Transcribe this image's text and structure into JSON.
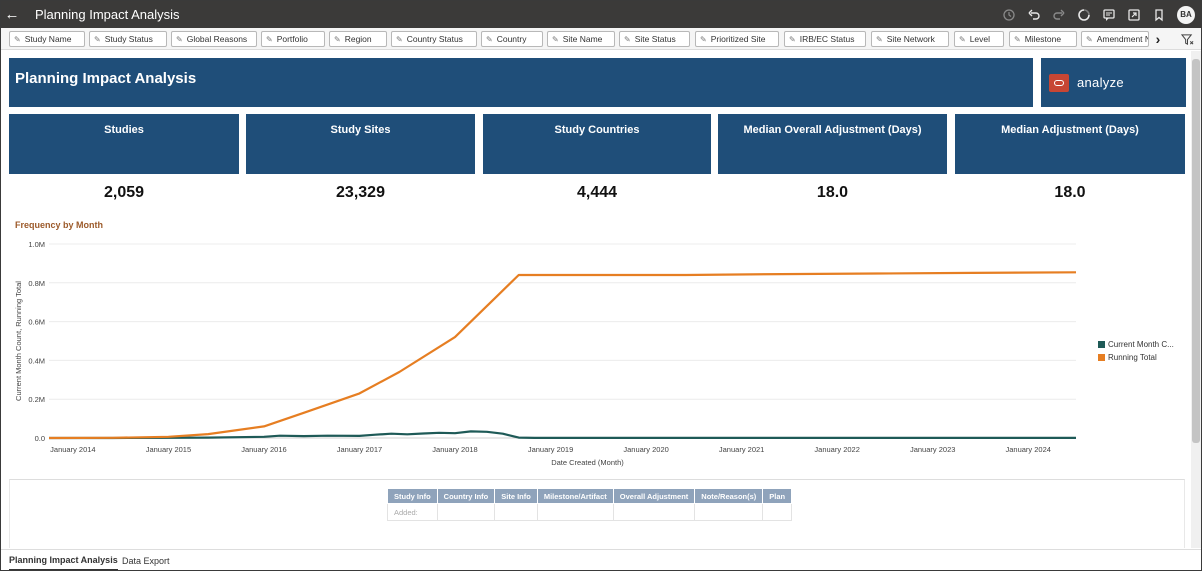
{
  "app": {
    "title": "Planning Impact Analysis",
    "user_initials": "BA"
  },
  "toolbar_icons": [
    "undo-history-icon",
    "undo-icon",
    "redo-icon",
    "refresh-icon",
    "comment-icon",
    "present-icon",
    "bookmark-icon"
  ],
  "filters": [
    "Study Name",
    "Study Status",
    "Global Reasons",
    "Portfolio",
    "Region",
    "Country Status",
    "Country",
    "Site Name",
    "Site Status",
    "Prioritized Site",
    "IRB/EC Status",
    "Site Network",
    "Level",
    "Milestone",
    "Amendment N"
  ],
  "banner": {
    "title": "Planning Impact Analysis",
    "logo_text": "analyze"
  },
  "kpis": [
    {
      "label": "Studies",
      "value": "2,059"
    },
    {
      "label": "Study Sites",
      "value": "23,329"
    },
    {
      "label": "Study Countries",
      "value": "4,444"
    },
    {
      "label": "Median Overall Adjustment (Days)",
      "value": "18.0"
    },
    {
      "label": "Median Adjustment (Days)",
      "value": "18.0"
    }
  ],
  "chart_title": "Frequency by Month",
  "chart_data": {
    "type": "line",
    "xlabel": "Date Created (Month)",
    "ylabel": "Current Month Count, Running Total",
    "ylim": [
      0,
      1000000
    ],
    "xlim": [
      "2013-10",
      "2024-07"
    ],
    "y_ticks": [
      "0.0",
      "0.2M",
      "0.4M",
      "0.6M",
      "0.8M",
      "1.0M"
    ],
    "y_tick_values": [
      0,
      200000,
      400000,
      600000,
      800000,
      1000000
    ],
    "x_ticks": [
      "January 2014",
      "January 2015",
      "January 2016",
      "January 2017",
      "January 2018",
      "January 2019",
      "January 2020",
      "January 2021",
      "January 2022",
      "January 2023",
      "January 2024"
    ],
    "x_tick_values": [
      "2014-01",
      "2015-01",
      "2016-01",
      "2017-01",
      "2018-01",
      "2019-01",
      "2020-01",
      "2021-01",
      "2022-01",
      "2023-01",
      "2024-01"
    ],
    "grid": true,
    "legend_position": "right",
    "series": [
      {
        "name": "Current Month C...",
        "color": "#1e5a57",
        "points": [
          [
            "2013-10",
            0
          ],
          [
            "2014-06",
            0
          ],
          [
            "2015-01",
            1000
          ],
          [
            "2015-06",
            2000
          ],
          [
            "2016-01",
            6000
          ],
          [
            "2016-03",
            12000
          ],
          [
            "2016-06",
            10000
          ],
          [
            "2016-09",
            12000
          ],
          [
            "2017-01",
            11000
          ],
          [
            "2017-03",
            17000
          ],
          [
            "2017-05",
            22000
          ],
          [
            "2017-07",
            19000
          ],
          [
            "2017-09",
            23000
          ],
          [
            "2017-11",
            27000
          ],
          [
            "2018-01",
            25000
          ],
          [
            "2018-03",
            34000
          ],
          [
            "2018-05",
            32000
          ],
          [
            "2018-07",
            22000
          ],
          [
            "2018-09",
            2000
          ],
          [
            "2018-11",
            500
          ],
          [
            "2019-06",
            300
          ],
          [
            "2020-06",
            500
          ],
          [
            "2021-06",
            400
          ],
          [
            "2022-06",
            500
          ],
          [
            "2023-06",
            400
          ],
          [
            "2024-07",
            400
          ]
        ]
      },
      {
        "name": "Running Total",
        "color": "#e67e22",
        "points": [
          [
            "2013-10",
            0
          ],
          [
            "2014-06",
            1000
          ],
          [
            "2015-01",
            6000
          ],
          [
            "2015-06",
            20000
          ],
          [
            "2016-01",
            60000
          ],
          [
            "2016-06",
            130000
          ],
          [
            "2017-01",
            230000
          ],
          [
            "2017-06",
            340000
          ],
          [
            "2018-01",
            520000
          ],
          [
            "2018-06",
            720000
          ],
          [
            "2018-09",
            840000
          ],
          [
            "2019-06",
            840000
          ],
          [
            "2020-06",
            840000
          ],
          [
            "2021-06",
            845000
          ],
          [
            "2022-06",
            848000
          ],
          [
            "2023-06",
            851000
          ],
          [
            "2024-07",
            854000
          ]
        ]
      }
    ]
  },
  "info_table": {
    "headers": [
      "Study Info",
      "Country Info",
      "Site Info",
      "Milestone/Artifact",
      "Overall Adjustment",
      "Note/Reason(s)",
      "Plan"
    ],
    "rows": [
      [
        "Added:",
        "",
        "",
        "",
        "",
        "",
        ""
      ]
    ]
  },
  "tabs": [
    {
      "label": "Planning Impact Analysis",
      "active": true
    },
    {
      "label": "Data Export",
      "active": false
    }
  ]
}
